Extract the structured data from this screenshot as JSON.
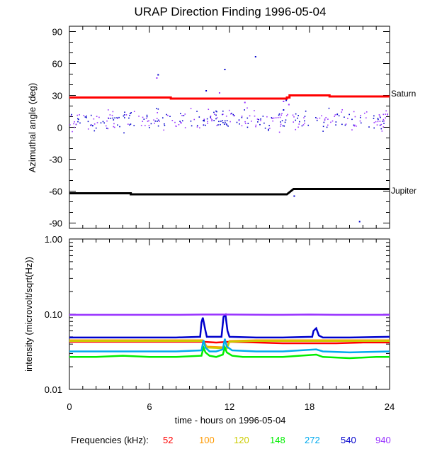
{
  "title": "URAP Direction Finding  1996-05-04",
  "xlabel": "time - hours on 1996-05-04",
  "legend_title": "Frequencies (kHz):",
  "chart_data": [
    {
      "type": "scatter",
      "ylabel": "Azimuthal angle (deg)",
      "xlim": [
        0,
        24
      ],
      "ylim": [
        -95,
        95
      ],
      "xticks": [
        "0",
        "6",
        "12",
        "18",
        "24"
      ],
      "yticks": [
        "90",
        "60",
        "30",
        "0",
        "-30",
        "-60",
        "-90"
      ],
      "annotations": [
        "Saturn",
        "Jupiter"
      ],
      "grid": false,
      "series": [
        {
          "name": "Saturn",
          "color": "#ff0000",
          "x": [
            0,
            7.6,
            7.6,
            16.3,
            16.3,
            16.5,
            16.5,
            19.5,
            19.5,
            24
          ],
          "y": [
            28,
            28,
            27,
            27,
            28,
            28,
            30,
            30,
            29,
            29
          ]
        },
        {
          "name": "Jupiter",
          "color": "#000000",
          "x": [
            0,
            4.6,
            4.6,
            16.3,
            16.8,
            24
          ],
          "y": [
            -62,
            -62,
            -63,
            -63,
            -58,
            -58
          ]
        },
        {
          "name": "540",
          "color": "#0000cc",
          "x": [
            6.6,
            10.2,
            11.6,
            13.9,
            16.2,
            16.0,
            16.8,
            21.7
          ],
          "y": [
            50,
            35,
            55,
            67,
            26,
            17,
            -64,
            -88
          ]
        },
        {
          "name": "940",
          "color": "#9933ff",
          "x": [
            6.5,
            11.2,
            13.1,
            16.4,
            16.0
          ],
          "y": [
            47,
            33,
            24,
            22,
            25
          ]
        }
      ],
      "scatter_band": {
        "x": [
          0,
          24
        ],
        "y_center": 8,
        "y_spread": 10,
        "colors": [
          "#0000cc",
          "#9933ff"
        ]
      }
    },
    {
      "type": "line",
      "ylabel": "intensity (microvolt/sqrt(Hz))",
      "xlim": [
        0,
        24
      ],
      "ylim": [
        0.01,
        1.0
      ],
      "yscale": "log",
      "xticks": [
        "0",
        "6",
        "12",
        "18",
        "24"
      ],
      "yticks": [
        "1.00",
        "0.10",
        "0.01"
      ],
      "grid": false,
      "series": [
        {
          "name": "52",
          "color": "#ff0000",
          "x": [
            0,
            10,
            11,
            12,
            14,
            16,
            18,
            20,
            22,
            24
          ],
          "y": [
            0.043,
            0.043,
            0.042,
            0.043,
            0.042,
            0.041,
            0.041,
            0.041,
            0.042,
            0.042
          ]
        },
        {
          "name": "100",
          "color": "#ff9900",
          "x": [
            0,
            10,
            10.3,
            11.8,
            12,
            14,
            18,
            24
          ],
          "y": [
            0.045,
            0.045,
            0.037,
            0.036,
            0.044,
            0.045,
            0.045,
            0.045
          ]
        },
        {
          "name": "120",
          "color": "#cccc00",
          "x": [
            0,
            10,
            10.3,
            11.8,
            12,
            14,
            18,
            24
          ],
          "y": [
            0.044,
            0.044,
            0.036,
            0.035,
            0.043,
            0.044,
            0.044,
            0.044
          ]
        },
        {
          "name": "148",
          "color": "#00ee00",
          "x": [
            0,
            2,
            4,
            6,
            8,
            9.9,
            10.05,
            10.2,
            10.5,
            11.0,
            11.5,
            11.65,
            11.8,
            12.2,
            13,
            14,
            16,
            18.5,
            19,
            21,
            23,
            24
          ],
          "y": [
            0.027,
            0.027,
            0.028,
            0.027,
            0.027,
            0.028,
            0.036,
            0.031,
            0.028,
            0.027,
            0.029,
            0.036,
            0.031,
            0.028,
            0.027,
            0.027,
            0.027,
            0.029,
            0.027,
            0.026,
            0.027,
            0.027
          ]
        },
        {
          "name": "272",
          "color": "#00aaee",
          "x": [
            0,
            4,
            8,
            9.9,
            10.05,
            10.2,
            10.5,
            11.0,
            11.5,
            11.65,
            11.8,
            12.2,
            14,
            16,
            18.5,
            19,
            21,
            24
          ],
          "y": [
            0.032,
            0.032,
            0.032,
            0.033,
            0.045,
            0.036,
            0.032,
            0.032,
            0.034,
            0.047,
            0.037,
            0.033,
            0.032,
            0.032,
            0.034,
            0.032,
            0.031,
            0.032
          ]
        },
        {
          "name": "540",
          "color": "#0000cc",
          "x": [
            0,
            4,
            8,
            9.8,
            9.9,
            10.0,
            10.2,
            10.3,
            11.4,
            11.55,
            11.7,
            11.85,
            12,
            14,
            16,
            18.2,
            18.3,
            18.5,
            18.7,
            19,
            21,
            24
          ],
          "y": [
            0.049,
            0.049,
            0.049,
            0.05,
            0.078,
            0.09,
            0.06,
            0.05,
            0.05,
            0.092,
            0.098,
            0.06,
            0.05,
            0.049,
            0.049,
            0.05,
            0.06,
            0.065,
            0.052,
            0.049,
            0.049,
            0.05
          ]
        },
        {
          "name": "940",
          "color": "#9933ff",
          "x": [
            0,
            4,
            8,
            10,
            12,
            16,
            18,
            20,
            24
          ],
          "y": [
            0.098,
            0.098,
            0.098,
            0.099,
            0.099,
            0.098,
            0.099,
            0.098,
            0.098
          ]
        }
      ]
    }
  ],
  "legend": [
    {
      "label": "52",
      "color": "#ff0000"
    },
    {
      "label": "100",
      "color": "#ff9900"
    },
    {
      "label": "120",
      "color": "#cccc00"
    },
    {
      "label": "148",
      "color": "#00ee00"
    },
    {
      "label": "272",
      "color": "#00aaee"
    },
    {
      "label": "540",
      "color": "#0000cc"
    },
    {
      "label": "940",
      "color": "#9933ff"
    }
  ]
}
